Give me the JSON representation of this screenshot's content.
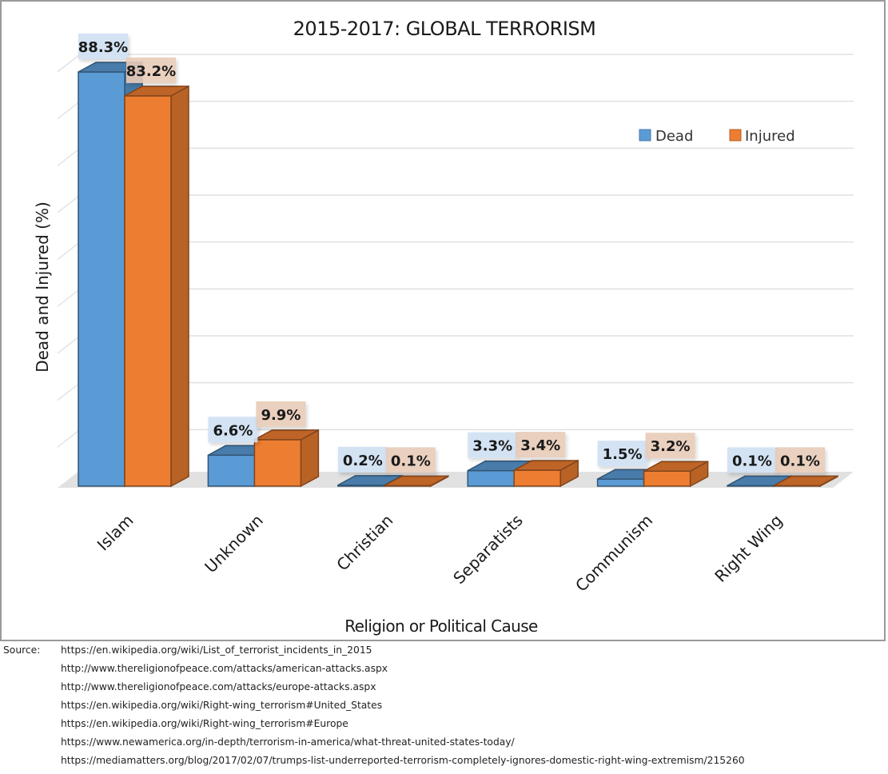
{
  "chart_data": {
    "type": "bar",
    "title": "2015-2017: GLOBAL TERRORISM",
    "xlabel": "Religion or Political Cause",
    "ylabel": "Dead and Injured (%)",
    "ylim": [
      0,
      90
    ],
    "grid": true,
    "legend_position": "top-right",
    "categories": [
      "Islam",
      "Unknown",
      "Christian",
      "Separatists",
      "Communism",
      "Right Wing"
    ],
    "series": [
      {
        "name": "Dead",
        "color": "#5b9bd5",
        "values": [
          88.3,
          6.6,
          0.2,
          3.3,
          1.5,
          0.1
        ],
        "labels": [
          "88.3%",
          "6.6%",
          "0.2%",
          "3.3%",
          "1.5%",
          "0.1%"
        ]
      },
      {
        "name": "Injured",
        "color": "#ed7d31",
        "values": [
          83.2,
          9.9,
          0.1,
          3.4,
          3.2,
          0.1
        ],
        "labels": [
          "83.2%",
          "9.9%",
          "0.1%",
          "3.4%",
          "3.2%",
          "0.1%"
        ]
      }
    ]
  },
  "source": {
    "label": "Source:",
    "lines": [
      "https://en.wikipedia.org/wiki/List_of_terrorist_incidents_in_2015",
      "http://www.thereligionofpeace.com/attacks/american-attacks.aspx",
      "http://www.thereligionofpeace.com/attacks/europe-attacks.aspx",
      "https://en.wikipedia.org/wiki/Right-wing_terrorism#United_States",
      "https://en.wikipedia.org/wiki/Right-wing_terrorism#Europe",
      "https://www.newamerica.org/in-depth/terrorism-in-america/what-threat-united-states-today/",
      "https://mediamatters.org/blog/2017/02/07/trumps-list-underreported-terrorism-completely-ignores-domestic-right-wing-extremism/215260"
    ]
  }
}
